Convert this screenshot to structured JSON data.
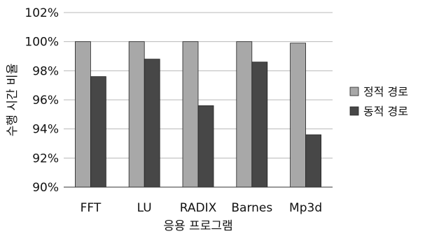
{
  "chart_data": {
    "type": "bar",
    "title": "",
    "xlabel": "응용 프로그램",
    "ylabel": "수행 시간 비율",
    "categories": [
      "FFT",
      "LU",
      "RADIX",
      "Barnes",
      "Mp3d"
    ],
    "series": [
      {
        "name": "정적 경로",
        "values": [
          100.0,
          100.0,
          100.0,
          100.0,
          99.9
        ],
        "color": "#a8a8a8"
      },
      {
        "name": "동적 경로",
        "values": [
          97.6,
          98.8,
          95.6,
          98.6,
          93.6
        ],
        "color": "#474747"
      }
    ],
    "ylim": [
      90,
      102
    ],
    "yticks": [
      "90%",
      "92%",
      "94%",
      "96%",
      "98%",
      "100%",
      "102%"
    ],
    "grid": true,
    "legend_position": "right"
  }
}
